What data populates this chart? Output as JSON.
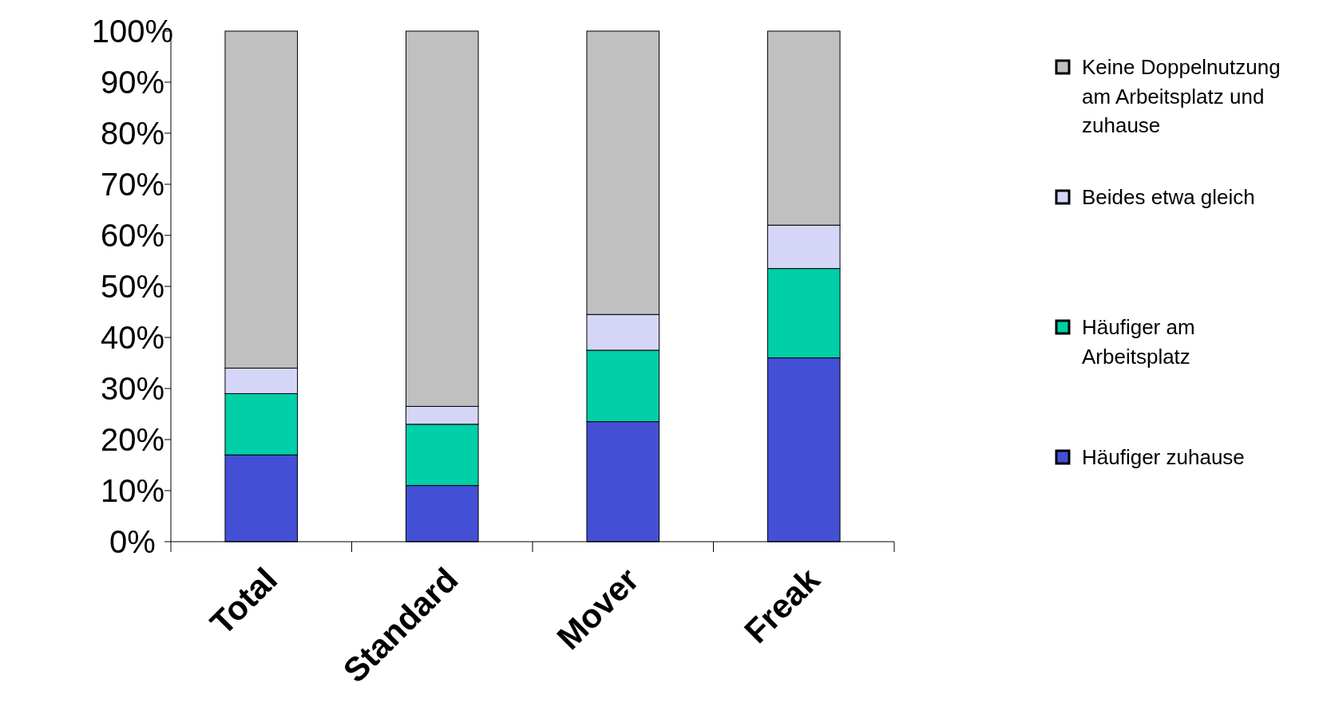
{
  "chart_data": {
    "type": "bar",
    "stacked": true,
    "categories": [
      "Total",
      "Standard",
      "Mover",
      "Freak"
    ],
    "series": [
      {
        "name": "Häufiger zuhause",
        "color": "#4350d6",
        "values": [
          17,
          11,
          23.5,
          36
        ]
      },
      {
        "name": "Häufiger am Arbeitsplatz",
        "color": "#00cfa8",
        "values": [
          12,
          12,
          14,
          17.5
        ]
      },
      {
        "name": "Beides etwa gleich",
        "color": "#d5d5f8",
        "values": [
          5,
          3.5,
          7,
          8.5
        ]
      },
      {
        "name": "Keine Doppelnutzung am Arbeitsplatz und zuhause",
        "color": "#c0c0c0",
        "values": [
          66,
          73.5,
          55.5,
          38
        ]
      }
    ],
    "ylim": [
      0,
      100
    ],
    "yticks": [
      {
        "value": 0,
        "label": "0%"
      },
      {
        "value": 10,
        "label": "10%"
      },
      {
        "value": 20,
        "label": "20%"
      },
      {
        "value": 30,
        "label": "30%"
      },
      {
        "value": 40,
        "label": "40%"
      },
      {
        "value": 50,
        "label": "50%"
      },
      {
        "value": 60,
        "label": "60%"
      },
      {
        "value": 70,
        "label": "70%"
      },
      {
        "value": 80,
        "label": "80%"
      },
      {
        "value": 90,
        "label": "90%"
      },
      {
        "value": 100,
        "label": "100%"
      }
    ],
    "grid": false,
    "legend": "right"
  }
}
